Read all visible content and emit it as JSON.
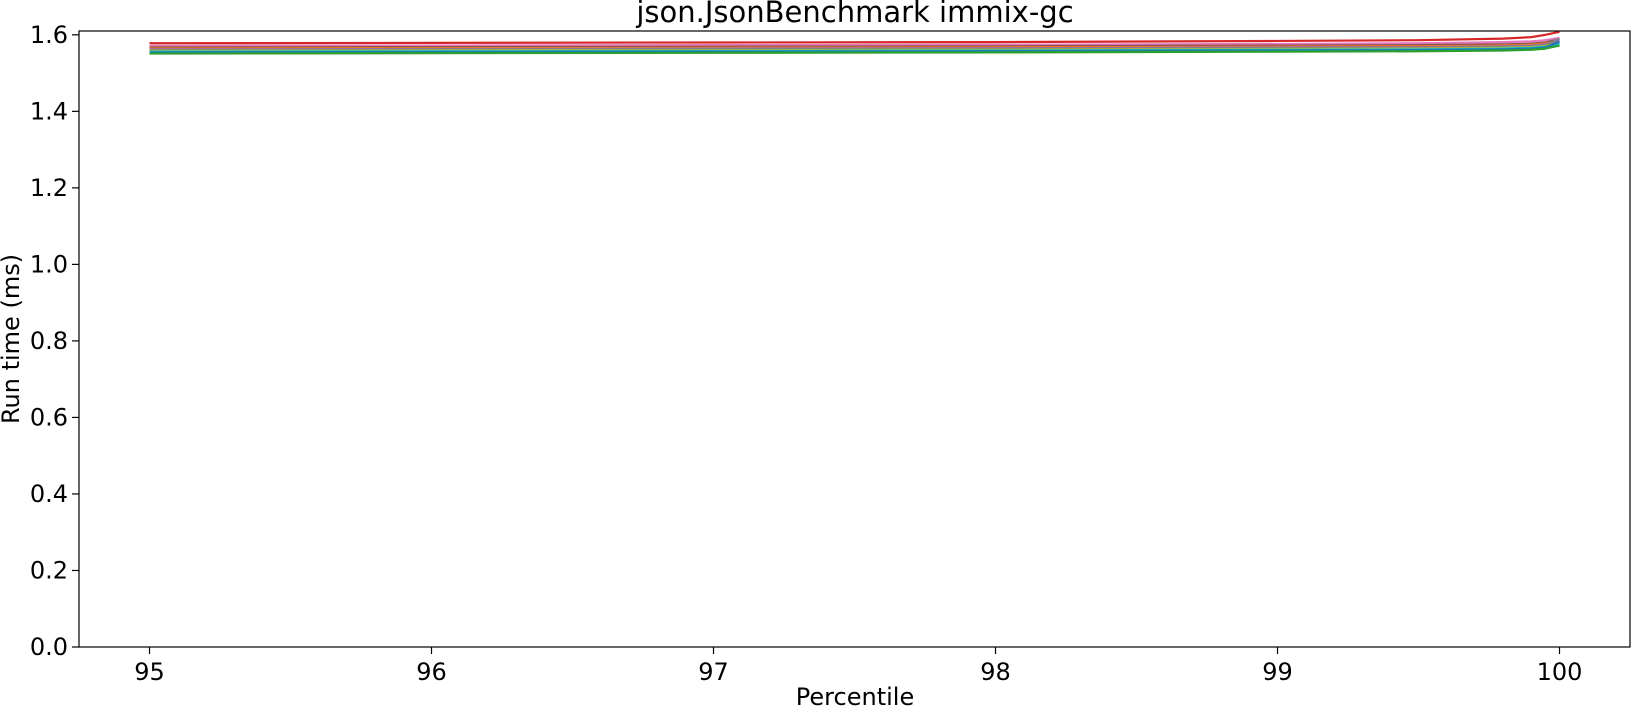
{
  "chart_data": {
    "type": "line",
    "title": "json.JsonBenchmark immix-gc",
    "xlabel": "Percentile",
    "ylabel": "Run time (ms)",
    "xlim": [
      94.75,
      100.25
    ],
    "ylim": [
      0.0,
      1.61
    ],
    "xticks": [
      "95",
      "96",
      "97",
      "98",
      "99",
      "100"
    ],
    "yticks": [
      "0.0",
      "0.2",
      "0.4",
      "0.6",
      "0.8",
      "1.0",
      "1.2",
      "1.4",
      "1.6"
    ],
    "grid": false,
    "legend": "none",
    "x": [
      95,
      96,
      97,
      98,
      99,
      99.5,
      99.8,
      99.9,
      99.95,
      100
    ],
    "series": [
      {
        "color": "#d62728",
        "values": [
          1.578,
          1.579,
          1.58,
          1.581,
          1.584,
          1.586,
          1.59,
          1.594,
          1.6,
          1.608
        ]
      },
      {
        "color": "#e377c2",
        "values": [
          1.571,
          1.572,
          1.573,
          1.574,
          1.576,
          1.578,
          1.581,
          1.583,
          1.586,
          1.592
        ]
      },
      {
        "color": "#8c564b",
        "values": [
          1.567,
          1.568,
          1.569,
          1.57,
          1.572,
          1.573,
          1.575,
          1.577,
          1.58,
          1.588
        ]
      },
      {
        "color": "#ff7f0e",
        "values": [
          1.564,
          1.565,
          1.566,
          1.567,
          1.569,
          1.57,
          1.572,
          1.574,
          1.577,
          1.583
        ]
      },
      {
        "color": "#9467bd",
        "values": [
          1.562,
          1.563,
          1.564,
          1.565,
          1.567,
          1.568,
          1.57,
          1.572,
          1.575,
          1.585
        ]
      },
      {
        "color": "#7f7f7f",
        "values": [
          1.56,
          1.561,
          1.562,
          1.563,
          1.565,
          1.566,
          1.568,
          1.57,
          1.573,
          1.59
        ]
      },
      {
        "color": "#bcbd22",
        "values": [
          1.558,
          1.559,
          1.56,
          1.561,
          1.563,
          1.564,
          1.566,
          1.568,
          1.571,
          1.578
        ]
      },
      {
        "color": "#17becf",
        "values": [
          1.556,
          1.557,
          1.558,
          1.559,
          1.561,
          1.562,
          1.564,
          1.566,
          1.569,
          1.576
        ]
      },
      {
        "color": "#1f77b4",
        "values": [
          1.554,
          1.555,
          1.556,
          1.557,
          1.559,
          1.56,
          1.562,
          1.564,
          1.567,
          1.582
        ]
      },
      {
        "color": "#2ca02c",
        "values": [
          1.551,
          1.552,
          1.553,
          1.554,
          1.556,
          1.557,
          1.559,
          1.561,
          1.564,
          1.572
        ]
      }
    ]
  }
}
